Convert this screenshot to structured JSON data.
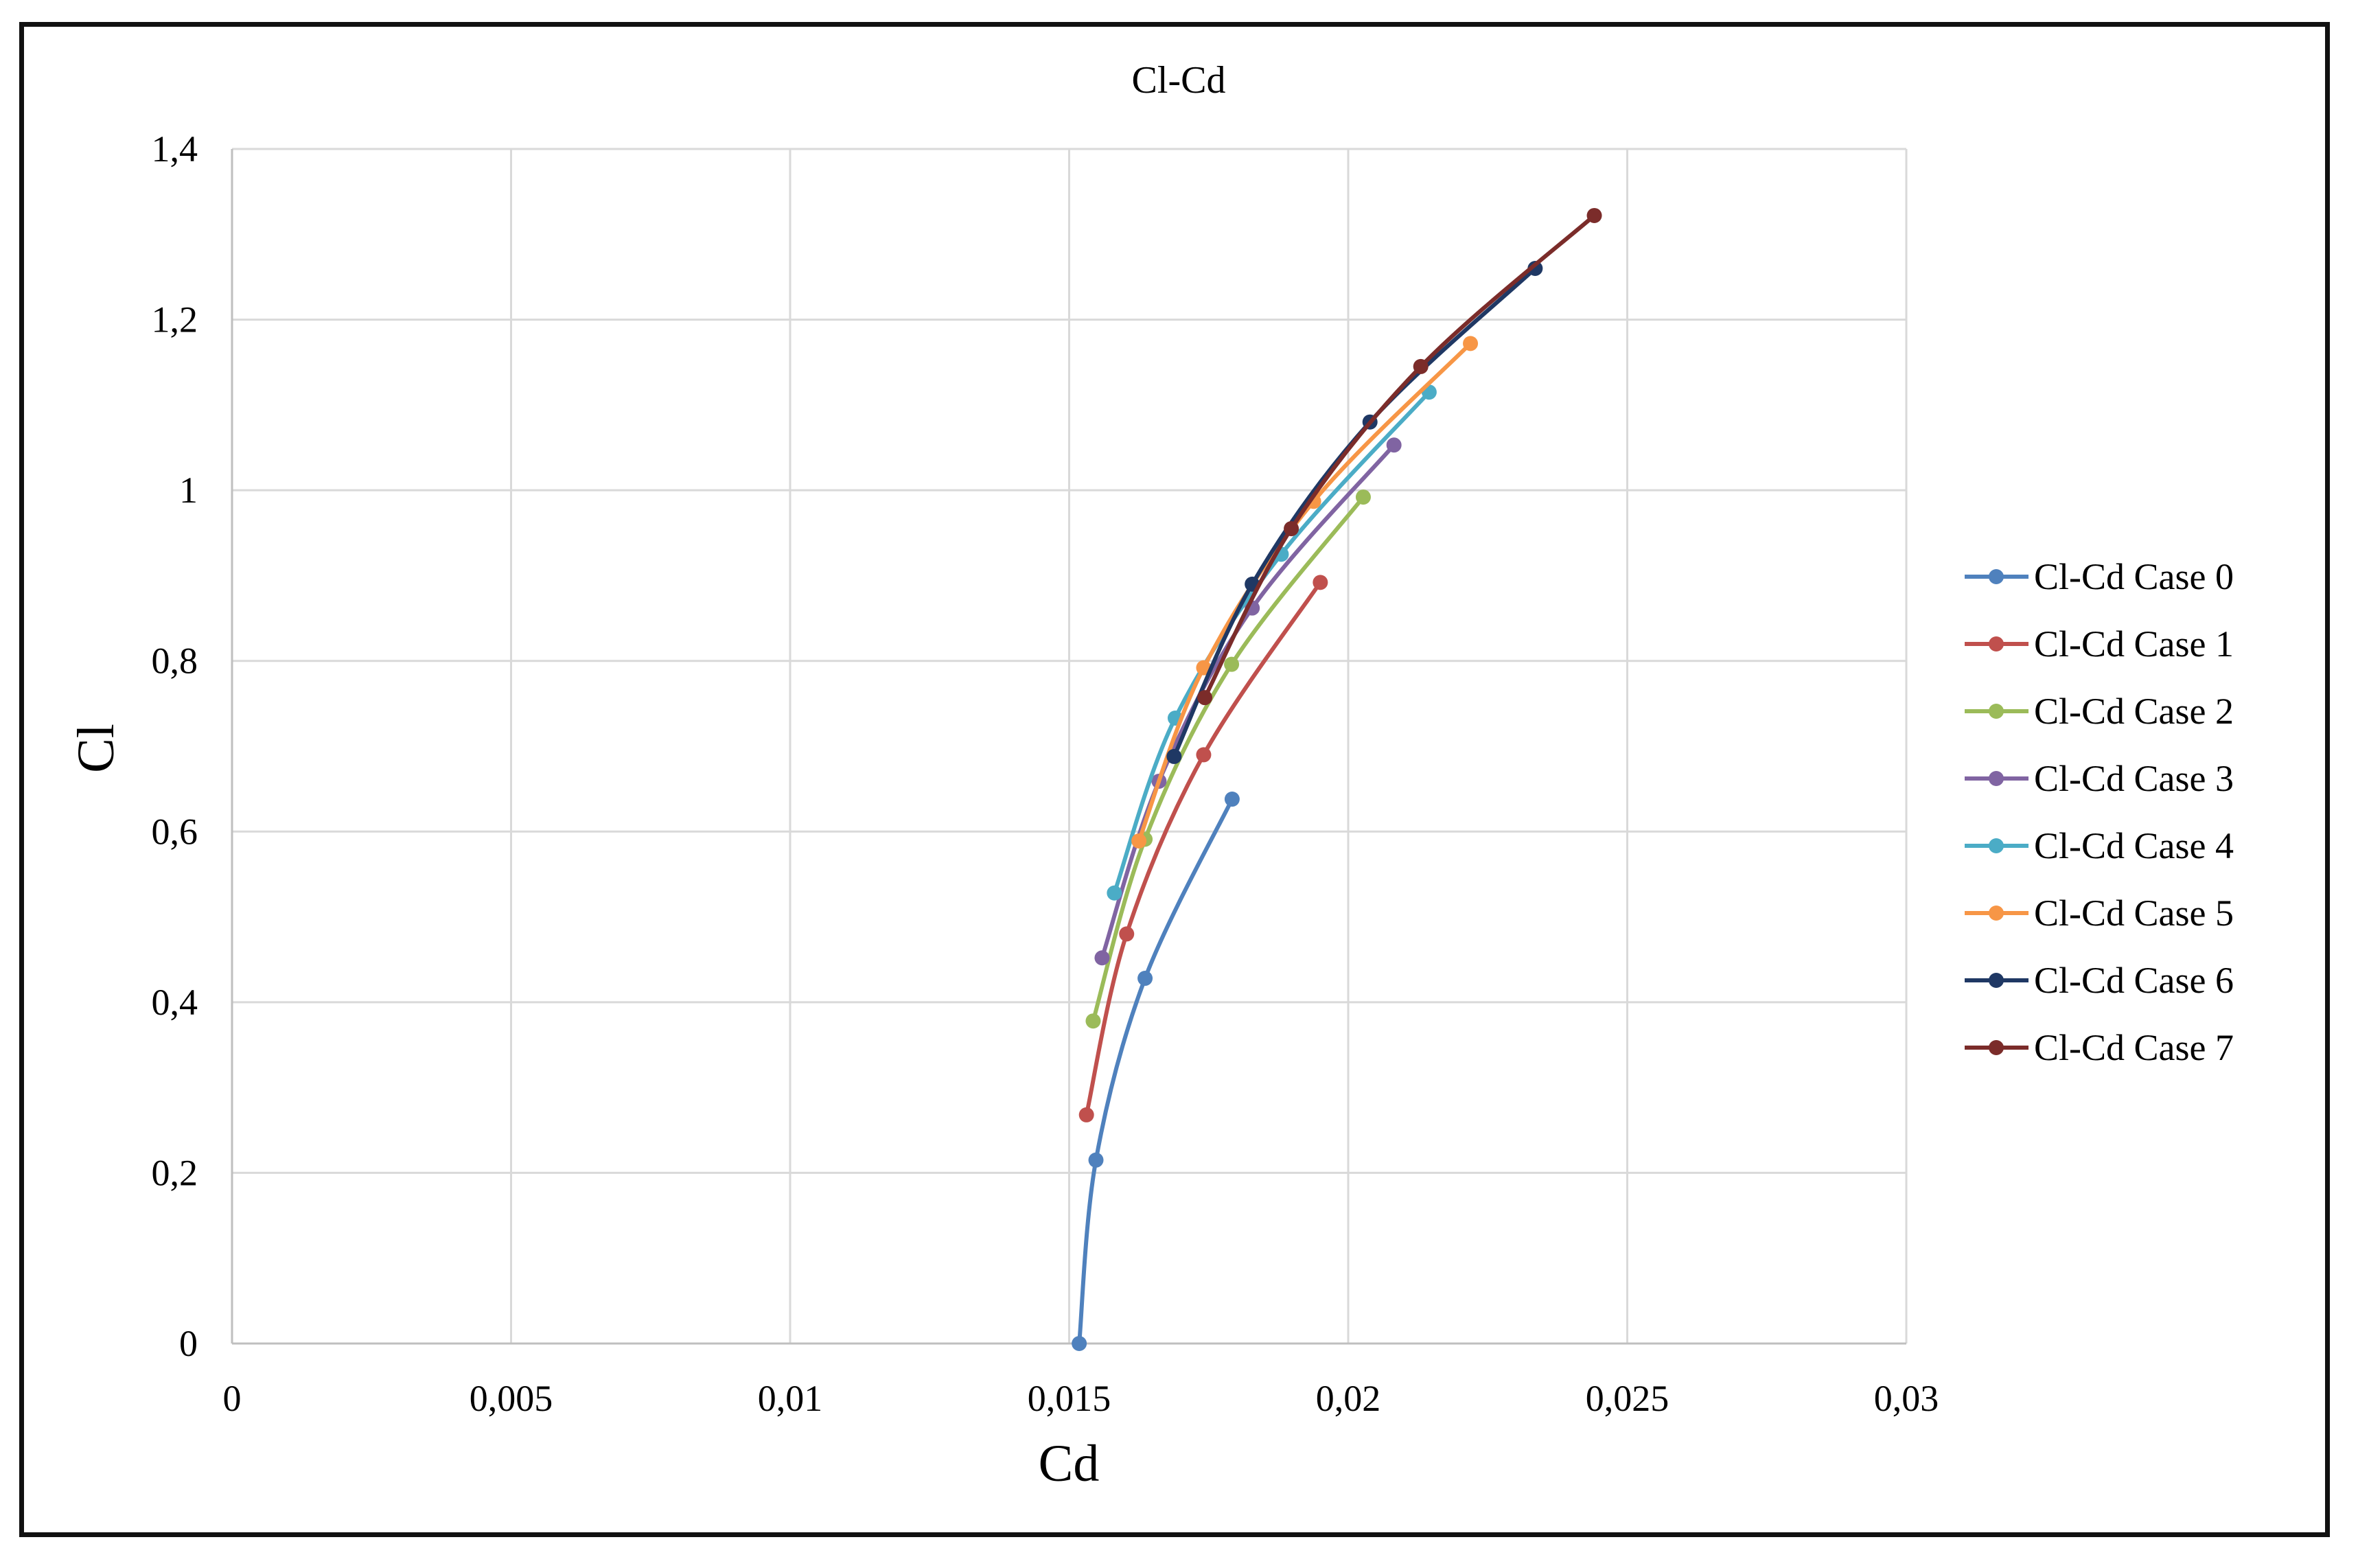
{
  "chart_data": {
    "type": "line",
    "title": "Cl-Cd",
    "xlabel": "Cd",
    "ylabel": "Cl",
    "xlim": [
      0,
      0.03
    ],
    "ylim": [
      0,
      1.4
    ],
    "x_ticks": [
      "0",
      "0,005",
      "0,01",
      "0,015",
      "0,02",
      "0,025",
      "0,03"
    ],
    "y_ticks": [
      "0",
      "0,2",
      "0,4",
      "0,6",
      "0,8",
      "1",
      "1,2",
      "1,4"
    ],
    "x_tick_values": [
      0,
      0.005,
      0.01,
      0.015,
      0.02,
      0.025,
      0.03
    ],
    "y_tick_values": [
      0,
      0.2,
      0.4,
      0.6,
      0.8,
      1.0,
      1.2,
      1.4
    ],
    "grid": true,
    "legend_position": "right",
    "series": [
      {
        "name": "Cl-Cd Case 0",
        "color": "#4f81bd",
        "x": [
          0.01518,
          0.01548,
          0.01636,
          0.01792
        ],
        "y": [
          0.0,
          0.215,
          0.428,
          0.638
        ]
      },
      {
        "name": "Cl-Cd Case 1",
        "color": "#c0504d",
        "x": [
          0.01531,
          0.01603,
          0.01741,
          0.0195
        ],
        "y": [
          0.268,
          0.48,
          0.69,
          0.892
        ]
      },
      {
        "name": "Cl-Cd Case 2",
        "color": "#9bbb59",
        "x": [
          0.01543,
          0.01636,
          0.01791,
          0.02027
        ],
        "y": [
          0.378,
          0.591,
          0.796,
          0.992
        ]
      },
      {
        "name": "Cl-Cd Case 3",
        "color": "#8064a2",
        "x": [
          0.01559,
          0.01661,
          0.01828,
          0.02082
        ],
        "y": [
          0.452,
          0.659,
          0.862,
          1.053
        ]
      },
      {
        "name": "Cl-Cd Case 4",
        "color": "#4bacc6",
        "x": [
          0.01581,
          0.0169,
          0.0188,
          0.02145
        ],
        "y": [
          0.528,
          0.733,
          0.925,
          1.115
        ]
      },
      {
        "name": "Cl-Cd Case 5",
        "color": "#f79646",
        "x": [
          0.01625,
          0.01741,
          0.01938,
          0.02219
        ],
        "y": [
          0.589,
          0.792,
          0.987,
          1.172
        ]
      },
      {
        "name": "Cl-Cd Case 6",
        "color": "#1f3864",
        "x": [
          0.01688,
          0.01828,
          0.02039,
          0.02335
        ],
        "y": [
          0.688,
          0.89,
          1.08,
          1.26
        ]
      },
      {
        "name": "Cl-Cd Case 7",
        "color": "#7b2c2a",
        "x": [
          0.01743,
          0.01898,
          0.0213,
          0.02441
        ],
        "y": [
          0.757,
          0.955,
          1.145,
          1.322
        ]
      }
    ]
  }
}
